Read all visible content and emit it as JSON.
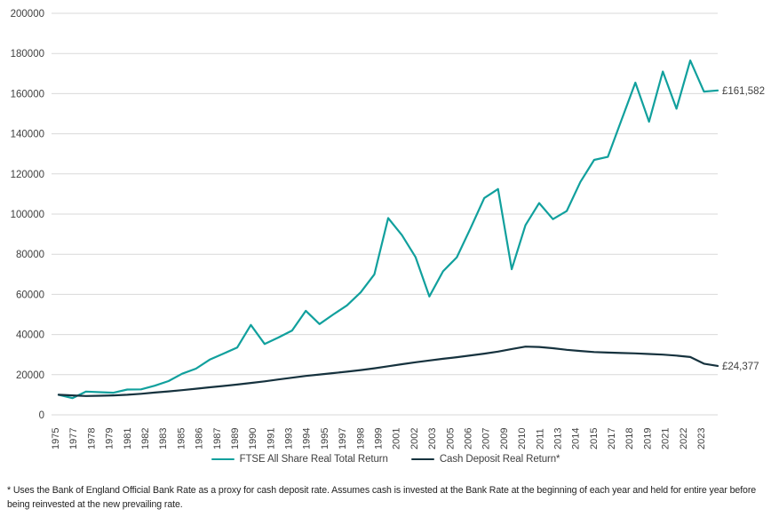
{
  "chart_data": {
    "type": "line",
    "title": "",
    "xlabel": "",
    "ylabel": "",
    "ylim": [
      0,
      200000
    ],
    "yticks": [
      0,
      20000,
      40000,
      60000,
      80000,
      100000,
      120000,
      140000,
      160000,
      180000,
      200000
    ],
    "ytick_labels": [
      "0",
      "20000",
      "40000",
      "60000",
      "80000",
      "100000",
      "120000",
      "140000",
      "160000",
      "180000",
      "200000"
    ],
    "xtick_labels": [
      "1975",
      "1977",
      "1978",
      "1979",
      "1981",
      "1982",
      "1983",
      "1985",
      "1986",
      "1987",
      "1989",
      "1990",
      "1991",
      "1993",
      "1994",
      "1995",
      "1997",
      "1998",
      "1999",
      "2001",
      "2002",
      "2003",
      "2005",
      "2006",
      "2007",
      "2009",
      "2010",
      "2011",
      "2013",
      "2014",
      "2015",
      "2017",
      "2018",
      "2019",
      "2021",
      "2022",
      "2023"
    ],
    "grid": "horizontal",
    "gridline_color": "#d9d9d9",
    "axis_label_color": "#3f3f3f",
    "legend_position": "bottom",
    "x": [
      1975,
      1976,
      1977,
      1978,
      1979,
      1980,
      1981,
      1982,
      1983,
      1984,
      1985,
      1986,
      1987,
      1988,
      1989,
      1990,
      1991,
      1992,
      1993,
      1994,
      1995,
      1996,
      1997,
      1998,
      1999,
      2000,
      2001,
      2002,
      2003,
      2004,
      2005,
      2006,
      2007,
      2008,
      2009,
      2010,
      2011,
      2012,
      2013,
      2014,
      2015,
      2016,
      2017,
      2018,
      2019,
      2020,
      2021,
      2022,
      2023
    ],
    "series": [
      {
        "id": "ftse-all-share",
        "name": "FTSE All Share Real Total Return",
        "color": "#11a09d",
        "end_label": "£161,582",
        "values": [
          10000,
          8300,
          11600,
          11300,
          11000,
          12600,
          12700,
          14500,
          16800,
          20500,
          23000,
          27500,
          30500,
          33500,
          44800,
          35300,
          38500,
          42000,
          51800,
          45200,
          50000,
          54500,
          61000,
          70000,
          98000,
          89500,
          78500,
          59000,
          71500,
          78500,
          93000,
          108000,
          112500,
          72500,
          94500,
          105500,
          97500,
          101500,
          116000,
          127000,
          128500,
          147000,
          165500,
          146000,
          171000,
          152500,
          176500,
          161000,
          161582
        ]
      },
      {
        "id": "cash-deposit",
        "name": "Cash Deposit Real Return*",
        "color": "#16323e",
        "end_label": "£24,377",
        "values": [
          10000,
          9700,
          9400,
          9500,
          9700,
          10000,
          10500,
          11100,
          11700,
          12300,
          13000,
          13700,
          14400,
          15100,
          15900,
          16700,
          17600,
          18500,
          19400,
          20100,
          20800,
          21500,
          22300,
          23200,
          24200,
          25200,
          26200,
          27100,
          27900,
          28700,
          29600,
          30500,
          31500,
          32800,
          34000,
          33800,
          33200,
          32400,
          31800,
          31300,
          31000,
          30800,
          30600,
          30300,
          30000,
          29500,
          28800,
          25500,
          24377
        ]
      }
    ]
  },
  "footnote": "* Uses the Bank of England Official Bank Rate as a proxy for cash deposit rate. Assumes cash is invested at the Bank Rate at the beginning of each year and held for entire year before being reinvested at the new prevailing rate."
}
